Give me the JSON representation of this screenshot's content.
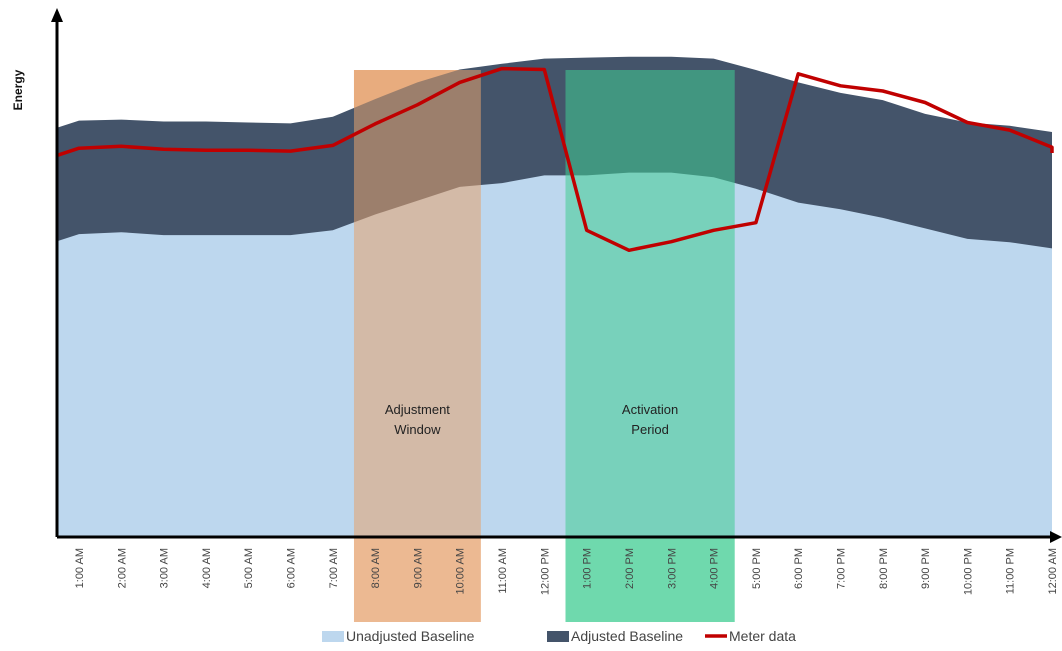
{
  "chart_data": {
    "type": "area",
    "title": "",
    "xlabel": "",
    "ylabel": "Energy",
    "ylim": [
      0,
      100
    ],
    "x": [
      "1:00 AM",
      "2:00 AM",
      "3:00 AM",
      "4:00 AM",
      "5:00 AM",
      "6:00 AM",
      "7:00 AM",
      "8:00 AM",
      "9:00 AM",
      "10:00 AM",
      "11:00 AM",
      "12:00 PM",
      "1:00 PM",
      "2:00 PM",
      "3:00 PM",
      "4:00 PM",
      "5:00 PM",
      "6:00 PM",
      "7:00 PM",
      "8:00 PM",
      "9:00 PM",
      "10:00 PM",
      "11:00 PM",
      "12:00 AM"
    ],
    "series": [
      {
        "name": "Unadjusted Baseline",
        "color": "#bdd7ee",
        "values": [
          63.5,
          63.9,
          63.3,
          63.3,
          63.3,
          63.3,
          64.3,
          67.6,
          70.5,
          73.4,
          74.2,
          75.8,
          75.8,
          76.4,
          76.4,
          75.4,
          73.0,
          70.1,
          68.7,
          66.9,
          64.7,
          62.5,
          61.8,
          60.5
        ]
      },
      {
        "name": "Adjusted Baseline",
        "color": "#44546a",
        "values": [
          87.3,
          87.5,
          87.1,
          87.1,
          86.9,
          86.7,
          88.1,
          91.8,
          95.3,
          98.0,
          99.2,
          100.3,
          100.5,
          100.7,
          100.7,
          100.3,
          97.9,
          95.3,
          93.1,
          91.6,
          88.7,
          86.9,
          86.2,
          84.9
        ]
      },
      {
        "name": "Meter data",
        "color": "#c00000",
        "values": [
          81.5,
          81.9,
          81.3,
          81.1,
          81.1,
          80.9,
          82.1,
          86.6,
          90.6,
          95.3,
          98.2,
          98.0,
          64.3,
          60.1,
          61.9,
          64.3,
          65.9,
          97.1,
          94.6,
          93.5,
          91.1,
          86.9,
          85.3,
          81.7
        ]
      }
    ],
    "regions": [
      {
        "label_lines": [
          "Adjustment",
          "Window"
        ],
        "start": 7.5,
        "end": 10.5,
        "color": "#e6a26e"
      },
      {
        "label_lines": [
          "Activation",
          "Period"
        ],
        "start": 12.5,
        "end": 16.5,
        "color": "#3fcc91"
      }
    ],
    "legend_position": "bottom",
    "grid": false
  }
}
